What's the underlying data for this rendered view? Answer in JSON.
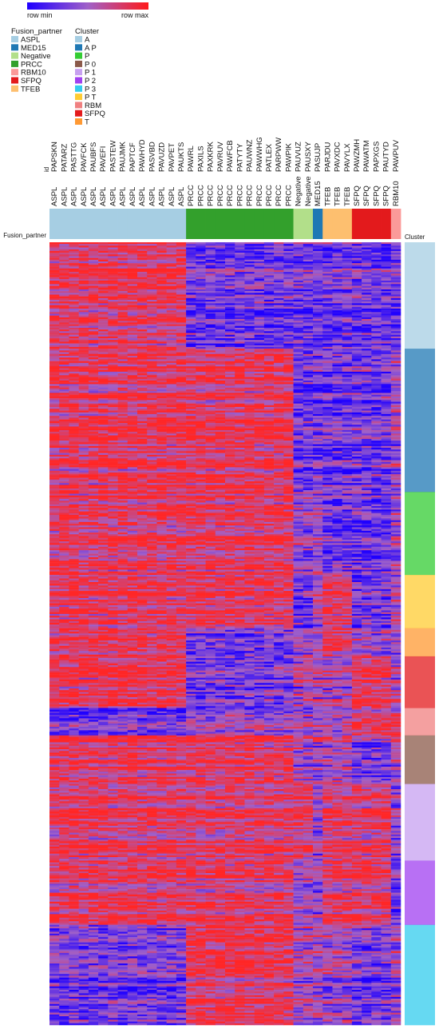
{
  "chart_data": {
    "type": "heatmap",
    "color_scale": {
      "min_label": "row min",
      "max_label": "row max",
      "min_color": "#1f00ff",
      "mid_color": "#a060c8",
      "max_color": "#ff1a1a"
    },
    "legends": {
      "fusion_partner": {
        "title": "Fusion_partner",
        "entries": [
          {
            "name": "ASPL",
            "color": "#a6cee3"
          },
          {
            "name": "MED15",
            "color": "#1f78b4"
          },
          {
            "name": "Negative",
            "color": "#b2df8a"
          },
          {
            "name": "PRCC",
            "color": "#33a02c"
          },
          {
            "name": "RBM10",
            "color": "#fb9a99"
          },
          {
            "name": "SFPQ",
            "color": "#e31a1c"
          },
          {
            "name": "TFEB",
            "color": "#fdbf6f"
          }
        ]
      },
      "cluster": {
        "title": "Cluster",
        "entries": [
          {
            "name": "A",
            "color": "#a6cee3"
          },
          {
            "name": "A P",
            "color": "#1f78b4"
          },
          {
            "name": "P",
            "color": "#33cc33"
          },
          {
            "name": "P 0",
            "color": "#8b5a4a"
          },
          {
            "name": "P 1",
            "color": "#c7a0f0"
          },
          {
            "name": "P 2",
            "color": "#a040f0"
          },
          {
            "name": "P 3",
            "color": "#33ccee"
          },
          {
            "name": "P T",
            "color": "#ffcc33"
          },
          {
            "name": "RBM",
            "color": "#f08080"
          },
          {
            "name": "SFPQ",
            "color": "#e31a1c"
          },
          {
            "name": "T",
            "color": "#ff9933"
          }
        ]
      }
    },
    "id_label": "id",
    "fusion_row_label": "Fusion_partner",
    "cluster_bar_label": "Cluster",
    "columns": [
      {
        "id": "PAPSKN",
        "partner": "ASPL"
      },
      {
        "id": "PATARZ",
        "partner": "ASPL"
      },
      {
        "id": "PASTTG",
        "partner": "ASPL"
      },
      {
        "id": "PAVFCK",
        "partner": "ASPL"
      },
      {
        "id": "PAUBFS",
        "partner": "ASPL"
      },
      {
        "id": "PAVEFI",
        "partner": "ASPL"
      },
      {
        "id": "PASTEW",
        "partner": "ASPL"
      },
      {
        "id": "PAUJMK",
        "partner": "ASPL"
      },
      {
        "id": "PAPTCF",
        "partner": "ASPL"
      },
      {
        "id": "PAWHYD",
        "partner": "ASPL"
      },
      {
        "id": "PASVBD",
        "partner": "ASPL"
      },
      {
        "id": "PAVUZD",
        "partner": "ASPL"
      },
      {
        "id": "PAVPET",
        "partner": "ASPL"
      },
      {
        "id": "PAUKTS",
        "partner": "ASPL"
      },
      {
        "id": "PAWRL",
        "partner": "PRCC"
      },
      {
        "id": "PAXILS",
        "partner": "PRCC"
      },
      {
        "id": "PAXKRK",
        "partner": "PRCC"
      },
      {
        "id": "PAVRUV",
        "partner": "PRCC"
      },
      {
        "id": "PAWFCB",
        "partner": "PRCC"
      },
      {
        "id": "PATYTY",
        "partner": "PRCC"
      },
      {
        "id": "PAUWNZ",
        "partner": "PRCC"
      },
      {
        "id": "PAWWHG",
        "partner": "PRCC"
      },
      {
        "id": "PATLEX",
        "partner": "PRCC"
      },
      {
        "id": "PARPWW",
        "partner": "PRCC"
      },
      {
        "id": "PAWPIK",
        "partner": "PRCC"
      },
      {
        "id": "PAUVUZ",
        "partner": "Negative"
      },
      {
        "id": "PAUSXY",
        "partner": "Negative"
      },
      {
        "id": "PASUJP",
        "partner": "MED15"
      },
      {
        "id": "PARJDU",
        "partner": "TFEB"
      },
      {
        "id": "PAVXDC",
        "partner": "TFEB"
      },
      {
        "id": "PAVYLX",
        "partner": "TFEB"
      },
      {
        "id": "PAWZMH",
        "partner": "SFPQ"
      },
      {
        "id": "PAWATM",
        "partner": "SFPQ"
      },
      {
        "id": "PAPXGS",
        "partner": "SFPQ"
      },
      {
        "id": "PAUTYD",
        "partner": "SFPQ"
      },
      {
        "id": "PAWPUV",
        "partner": "RBM10"
      }
    ],
    "cluster_bar": [
      {
        "cluster": "A",
        "fraction": 0.136
      },
      {
        "cluster": "A P",
        "fraction": 0.183
      },
      {
        "cluster": "P",
        "fraction": 0.106
      },
      {
        "cluster": "P T",
        "fraction": 0.068
      },
      {
        "cluster": "T",
        "fraction": 0.036
      },
      {
        "cluster": "SFPQ",
        "fraction": 0.066
      },
      {
        "cluster": "RBM",
        "fraction": 0.035
      },
      {
        "cluster": "P 0",
        "fraction": 0.062
      },
      {
        "cluster": "P 1",
        "fraction": 0.098
      },
      {
        "cluster": "P 2",
        "fraction": 0.082
      },
      {
        "cluster": "P 3",
        "fraction": 0.128
      }
    ],
    "row_band_tendency": [
      {
        "fraction": 0.136,
        "high_groups": [
          "ASPL"
        ],
        "low_groups": [
          "PRCC",
          "Negative",
          "MED15",
          "TFEB",
          "SFPQ",
          "RBM10"
        ]
      },
      {
        "fraction": 0.183,
        "high_groups": [
          "ASPL",
          "PRCC"
        ],
        "low_groups": [
          "Negative",
          "MED15",
          "TFEB",
          "SFPQ"
        ]
      },
      {
        "fraction": 0.106,
        "high_groups": [
          "ASPL",
          "PRCC"
        ],
        "low_groups": [
          "SFPQ",
          "TFEB"
        ]
      },
      {
        "fraction": 0.068,
        "high_groups": [
          "ASPL",
          "PRCC",
          "TFEB"
        ],
        "low_groups": [
          "Negative",
          "SFPQ"
        ]
      },
      {
        "fraction": 0.036,
        "high_groups": [
          "TFEB",
          "ASPL"
        ],
        "low_groups": [
          "PRCC"
        ]
      },
      {
        "fraction": 0.066,
        "high_groups": [
          "SFPQ",
          "ASPL"
        ],
        "low_groups": [
          "PRCC"
        ]
      },
      {
        "fraction": 0.035,
        "high_groups": [
          "RBM10",
          "SFPQ"
        ],
        "low_groups": [
          "ASPL"
        ]
      },
      {
        "fraction": 0.062,
        "high_groups": [
          "PRCC",
          "ASPL"
        ],
        "low_groups": [
          "SFPQ"
        ]
      },
      {
        "fraction": 0.098,
        "high_groups": [
          "ASPL",
          "PRCC",
          "Negative",
          "TFEB",
          "SFPQ"
        ],
        "low_groups": []
      },
      {
        "fraction": 0.082,
        "high_groups": [
          "ASPL",
          "PRCC",
          "TFEB",
          "SFPQ"
        ],
        "low_groups": [
          "RBM10"
        ]
      },
      {
        "fraction": 0.128,
        "high_groups": [
          "PRCC"
        ],
        "low_groups": [
          "ASPL",
          "SFPQ"
        ]
      }
    ]
  }
}
